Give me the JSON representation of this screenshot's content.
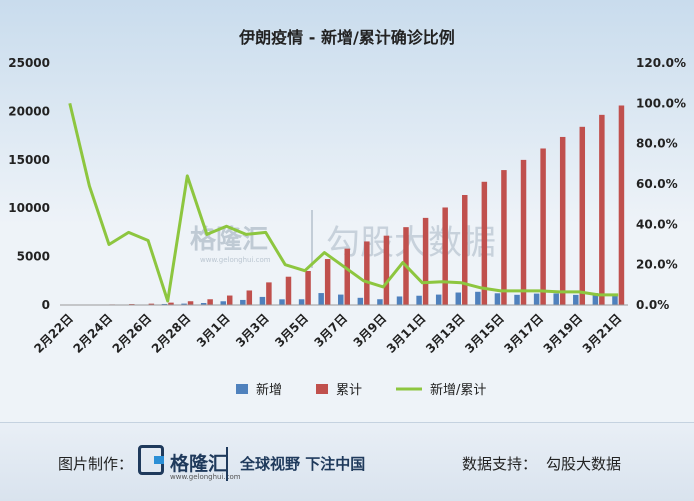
{
  "footer": {
    "credit_label": "图片制作：",
    "brand": "格隆汇",
    "brand_url": "www.gelonghui.com",
    "slogan": "全球视野 下注中国",
    "source_label": "数据支持：",
    "source_name": "勾股大数据"
  },
  "watermark": {
    "brand": "格隆汇",
    "partner": "勾股大数据",
    "url": "www.gelonghui.com"
  },
  "colors": {
    "bar_new": "#4f81bd",
    "bar_cum": "#c0504d",
    "line_ratio": "#8dc63f",
    "title": "#222222"
  },
  "chart_data": {
    "type": "bar+line",
    "title": "伊朗疫情 - 新增/累计确诊比例",
    "categories": [
      "2月22日",
      "2月23日",
      "2月24日",
      "2月25日",
      "2月26日",
      "2月27日",
      "2月28日",
      "2月29日",
      "3月1日",
      "3月2日",
      "3月3日",
      "3月4日",
      "3月5日",
      "3月6日",
      "3月7日",
      "3月8日",
      "3月9日",
      "3月10日",
      "3月11日",
      "3月12日",
      "3月13日",
      "3月14日",
      "3月15日",
      "3月16日",
      "3月17日",
      "3月18日",
      "3月19日",
      "3月20日",
      "3月21日"
    ],
    "x_tick_labels": [
      "2月22日",
      "2月24日",
      "2月26日",
      "2月28日",
      "3月1日",
      "3月3日",
      "3月5日",
      "3月7日",
      "3月9日",
      "3月11日",
      "3月13日",
      "3月15日",
      "3月17日",
      "3月19日",
      "3月21日"
    ],
    "series": [
      {
        "name": "新增",
        "axis": "left",
        "type": "bar",
        "values": [
          10,
          15,
          18,
          34,
          44,
          106,
          143,
          205,
          385,
          523,
          835,
          586,
          591,
          1234,
          1076,
          743,
          595,
          881,
          958,
          1075,
          1289,
          1365,
          1209,
          1053,
          1178,
          1192,
          1046,
          1237,
          966
        ]
      },
      {
        "name": "累计",
        "axis": "left",
        "type": "bar",
        "values": [
          28,
          43,
          61,
          95,
          139,
          245,
          388,
          593,
          978,
          1501,
          2336,
          2922,
          3513,
          4747,
          5823,
          6566,
          7161,
          8042,
          9000,
          10075,
          11364,
          12729,
          13938,
          14991,
          16169,
          17361,
          18407,
          19644,
          20610
        ]
      },
      {
        "name": "新增/累计",
        "axis": "right",
        "type": "line",
        "values": [
          100,
          59,
          30,
          36,
          32,
          2,
          64,
          35,
          39,
          35,
          36,
          20,
          17,
          26,
          19,
          12,
          9,
          21,
          11,
          11.5,
          11,
          8.5,
          7,
          7,
          7,
          6.5,
          6.5,
          5,
          5
        ]
      }
    ],
    "y_left": {
      "min": 0,
      "max": 25000,
      "ticks": [
        0,
        5000,
        10000,
        15000,
        20000,
        25000
      ],
      "tick_labels": [
        "0",
        "5000",
        "10000",
        "15000",
        "20000",
        "25000"
      ]
    },
    "y_right": {
      "min": 0,
      "max": 120,
      "ticks": [
        0,
        20,
        40,
        60,
        80,
        100,
        120
      ],
      "tick_labels": [
        "0.0%",
        "20.0%",
        "40.0%",
        "60.0%",
        "80.0%",
        "100.0%",
        "120.0%"
      ]
    },
    "legend": [
      {
        "label": "新增",
        "kind": "bar"
      },
      {
        "label": "累计",
        "kind": "bar"
      },
      {
        "label": "新增/累计",
        "kind": "line"
      }
    ],
    "legend_position": "bottom",
    "grid": false
  }
}
